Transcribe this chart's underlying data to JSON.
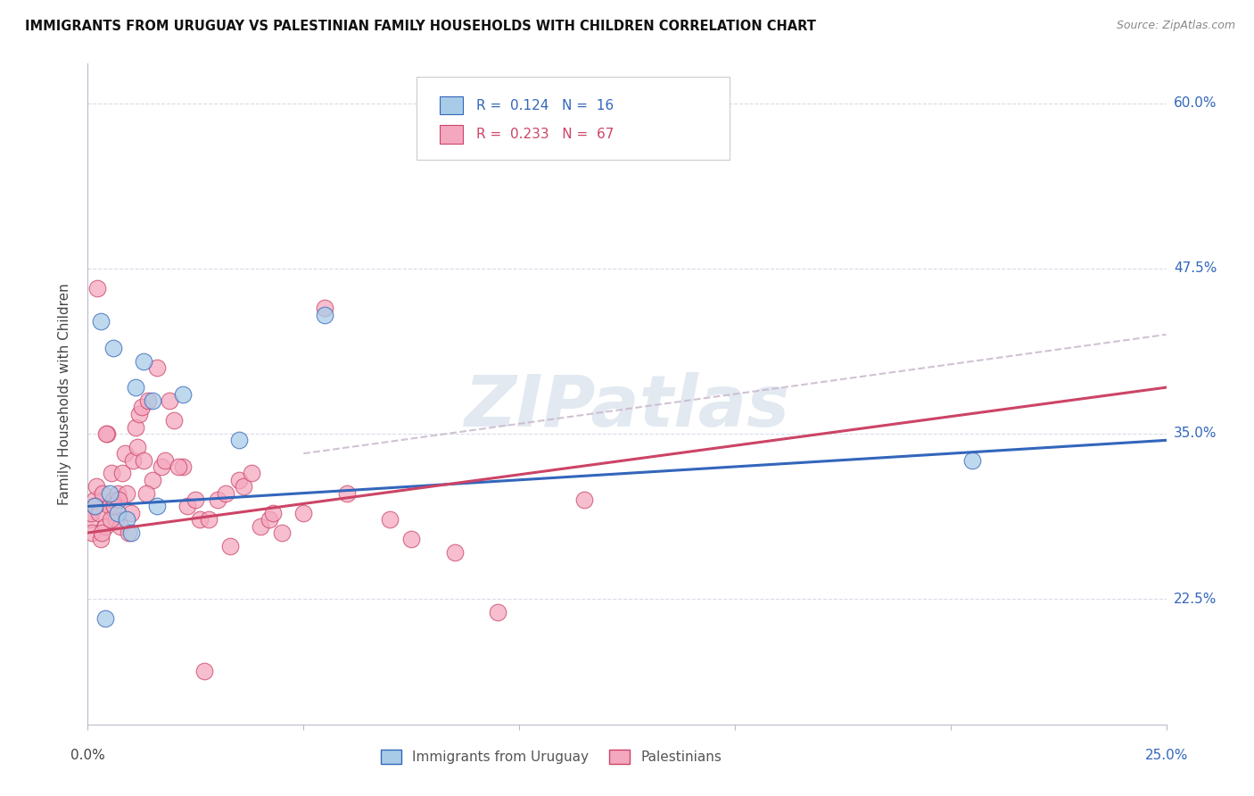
{
  "title": "IMMIGRANTS FROM URUGUAY VS PALESTINIAN FAMILY HOUSEHOLDS WITH CHILDREN CORRELATION CHART",
  "source": "Source: ZipAtlas.com",
  "ylabel": "Family Households with Children",
  "xlim": [
    0.0,
    25.0
  ],
  "ylim": [
    13.0,
    63.0
  ],
  "ytick_labels": [
    "22.5%",
    "35.0%",
    "47.5%",
    "60.0%"
  ],
  "ytick_values": [
    22.5,
    35.0,
    47.5,
    60.0
  ],
  "legend_label1": "Immigrants from Uruguay",
  "legend_label2": "Palestinians",
  "R1": "0.124",
  "N1": "16",
  "R2": "0.233",
  "N2": "67",
  "color_blue": "#a8cce8",
  "color_pink": "#f4a8c0",
  "color_blue_line": "#3366bb",
  "color_pink_line": "#cc4466",
  "color_dashed": "#c8b8cc",
  "background": "#ffffff",
  "grid_color": "#d8dce8",
  "blue_points_x": [
    0.15,
    0.3,
    0.5,
    0.6,
    0.7,
    0.9,
    1.0,
    1.1,
    1.3,
    1.5,
    1.6,
    2.2,
    3.5,
    5.5,
    20.5,
    0.4
  ],
  "blue_points_y": [
    29.5,
    43.5,
    30.5,
    41.5,
    29.0,
    28.5,
    27.5,
    38.5,
    40.5,
    37.5,
    29.5,
    38.0,
    34.5,
    44.0,
    33.0,
    21.0
  ],
  "pink_points_x": [
    0.05,
    0.08,
    0.1,
    0.15,
    0.18,
    0.2,
    0.25,
    0.3,
    0.35,
    0.4,
    0.45,
    0.5,
    0.55,
    0.6,
    0.65,
    0.7,
    0.75,
    0.8,
    0.85,
    0.9,
    0.95,
    1.0,
    1.05,
    1.1,
    1.15,
    1.2,
    1.25,
    1.3,
    1.4,
    1.5,
    1.6,
    1.7,
    1.8,
    1.9,
    2.0,
    2.2,
    2.3,
    2.5,
    2.6,
    2.8,
    3.0,
    3.2,
    3.5,
    3.6,
    3.8,
    4.0,
    4.2,
    4.5,
    5.0,
    5.5,
    6.0,
    7.0,
    7.5,
    8.5,
    9.5,
    11.5,
    0.22,
    0.32,
    0.42,
    0.52,
    0.62,
    0.72,
    1.35,
    2.1,
    4.3,
    3.3,
    2.7
  ],
  "pink_points_y": [
    28.5,
    29.0,
    27.5,
    30.0,
    29.5,
    31.0,
    29.0,
    27.0,
    30.5,
    28.0,
    35.0,
    29.5,
    32.0,
    30.0,
    28.5,
    30.5,
    28.0,
    32.0,
    33.5,
    30.5,
    27.5,
    29.0,
    33.0,
    35.5,
    34.0,
    36.5,
    37.0,
    33.0,
    37.5,
    31.5,
    40.0,
    32.5,
    33.0,
    37.5,
    36.0,
    32.5,
    29.5,
    30.0,
    28.5,
    28.5,
    30.0,
    30.5,
    31.5,
    31.0,
    32.0,
    28.0,
    28.5,
    27.5,
    29.0,
    44.5,
    30.5,
    28.5,
    27.0,
    26.0,
    21.5,
    30.0,
    46.0,
    27.5,
    35.0,
    28.5,
    29.5,
    30.0,
    30.5,
    32.5,
    29.0,
    26.5,
    17.0
  ],
  "watermark": "ZIPatlas",
  "watermark_color": "#c0cfe0",
  "watermark_alpha": 0.45,
  "blue_trend_x0": 0.0,
  "blue_trend_y0": 29.5,
  "blue_trend_x1": 25.0,
  "blue_trend_y1": 34.5,
  "pink_trend_x0": 0.0,
  "pink_trend_y0": 27.5,
  "pink_trend_x1": 25.0,
  "pink_trend_y1": 38.5,
  "dash_trend_x0": 5.0,
  "dash_trend_y0": 33.5,
  "dash_trend_x1": 25.0,
  "dash_trend_y1": 42.5
}
